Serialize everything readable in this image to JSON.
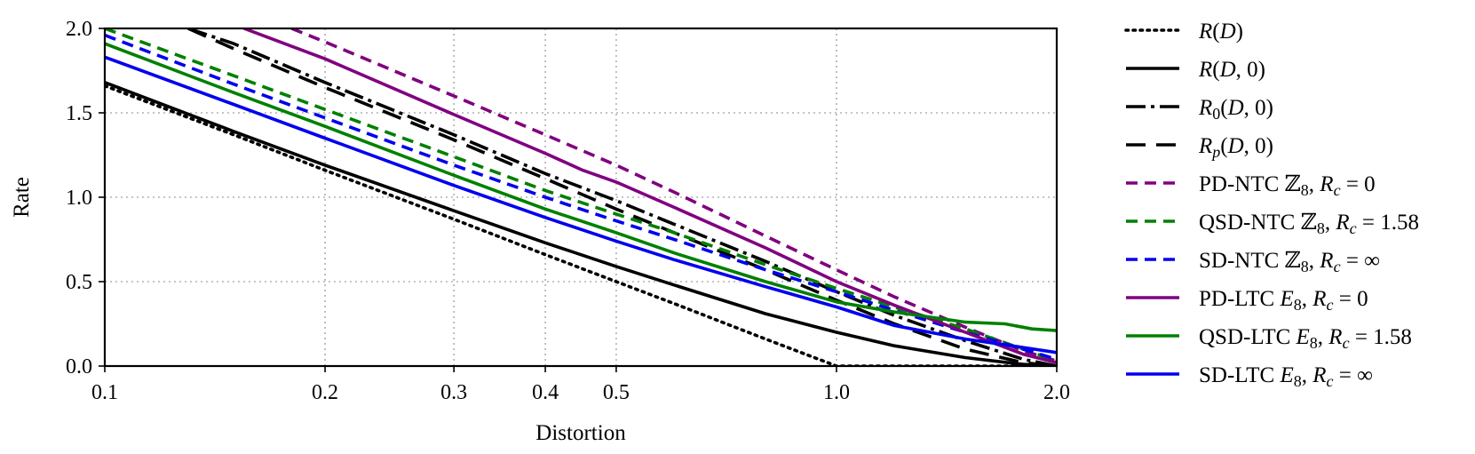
{
  "chart_data": {
    "type": "line",
    "title": "",
    "xlabel": "Distortion",
    "ylabel": "Rate",
    "xscale": "log",
    "xlim": [
      0.1,
      2.0
    ],
    "ylim": [
      0.0,
      2.0
    ],
    "grid": true,
    "legend_position": "right-outside",
    "xticks": [
      {
        "value": 0.1,
        "label": "0.1"
      },
      {
        "value": 0.2,
        "label": "0.2"
      },
      {
        "value": 0.3,
        "label": "0.3"
      },
      {
        "value": 0.4,
        "label": "0.4"
      },
      {
        "value": 0.5,
        "label": "0.5"
      },
      {
        "value": 1.0,
        "label": "1.0"
      },
      {
        "value": 2.0,
        "label": "2.0"
      }
    ],
    "yticks": [
      {
        "value": 0.0,
        "label": "0.0"
      },
      {
        "value": 0.5,
        "label": "0.5"
      },
      {
        "value": 1.0,
        "label": "1.0"
      },
      {
        "value": 1.5,
        "label": "1.5"
      },
      {
        "value": 2.0,
        "label": "2.0"
      }
    ],
    "series": [
      {
        "id": "r-d",
        "name": "R(D)",
        "color": "#000000",
        "dash": "dotted",
        "legend": [
          {
            "t": "R",
            "i": true
          },
          {
            "t": "(",
            "i": false
          },
          {
            "t": "D",
            "i": true
          },
          {
            "t": ")",
            "i": false
          }
        ],
        "x": [
          0.1,
          0.15,
          0.2,
          0.3,
          0.4,
          0.5,
          0.6,
          0.8,
          1.0,
          1.5,
          2.0
        ],
        "y": [
          1.66,
          1.37,
          1.16,
          0.87,
          0.66,
          0.5,
          0.37,
          0.16,
          0.0,
          0.0,
          0.0
        ]
      },
      {
        "id": "r-d-0",
        "name": "R(D,0)",
        "color": "#000000",
        "dash": "solid",
        "legend": [
          {
            "t": "R",
            "i": true
          },
          {
            "t": "(",
            "i": false
          },
          {
            "t": "D",
            "i": true
          },
          {
            "t": ", 0)",
            "i": false
          }
        ],
        "x": [
          0.1,
          0.15,
          0.2,
          0.3,
          0.4,
          0.5,
          0.6,
          0.8,
          1.0,
          1.2,
          1.5,
          1.8,
          2.0
        ],
        "y": [
          1.68,
          1.39,
          1.19,
          0.92,
          0.73,
          0.59,
          0.48,
          0.31,
          0.2,
          0.12,
          0.05,
          0.01,
          0.0
        ]
      },
      {
        "id": "r0-d-0",
        "name": "R0(D,0)",
        "color": "#000000",
        "dash": "dashdot",
        "legend": [
          {
            "t": "R",
            "i": true
          },
          {
            "t": "0",
            "i": false,
            "sub": true
          },
          {
            "t": "(",
            "i": false
          },
          {
            "t": "D",
            "i": true
          },
          {
            "t": ", 0)",
            "i": false
          }
        ],
        "x": [
          0.13,
          0.15,
          0.2,
          0.3,
          0.4,
          0.5,
          0.6,
          0.8,
          1.0,
          1.2,
          1.5,
          1.8,
          2.0
        ],
        "y": [
          2.0,
          1.91,
          1.68,
          1.37,
          1.14,
          0.98,
          0.84,
          0.62,
          0.44,
          0.3,
          0.15,
          0.04,
          0.0
        ]
      },
      {
        "id": "rp-d-0",
        "name": "Rp(D,0)",
        "color": "#000000",
        "dash": "longdash",
        "legend": [
          {
            "t": "R",
            "i": true
          },
          {
            "t": "p",
            "i": true,
            "sub": true
          },
          {
            "t": "(",
            "i": false
          },
          {
            "t": "D",
            "i": true
          },
          {
            "t": ", 0)",
            "i": false
          }
        ],
        "x": [
          0.13,
          0.15,
          0.2,
          0.3,
          0.4,
          0.5,
          0.6,
          0.8,
          1.0,
          1.2,
          1.5,
          1.8,
          2.0
        ],
        "y": [
          2.0,
          1.88,
          1.65,
          1.34,
          1.11,
          0.93,
          0.79,
          0.57,
          0.39,
          0.25,
          0.1,
          0.02,
          0.0
        ]
      },
      {
        "id": "pd-ntc",
        "name": "PD-NTC Z8, Rc = 0",
        "color": "#800080",
        "dash": "dashed",
        "legend": [
          {
            "t": "PD-NTC ",
            "i": false
          },
          {
            "t": "ℤ",
            "i": false
          },
          {
            "t": "8",
            "i": false,
            "sub": true
          },
          {
            "t": ", ",
            "i": false
          },
          {
            "t": "R",
            "i": true
          },
          {
            "t": "c",
            "i": true,
            "sub": true
          },
          {
            "t": " = 0",
            "i": false
          }
        ],
        "x": [
          0.18,
          0.2,
          0.3,
          0.4,
          0.5,
          0.6,
          0.8,
          1.0,
          1.2,
          1.5,
          1.8,
          2.0
        ],
        "y": [
          2.0,
          1.92,
          1.6,
          1.37,
          1.19,
          1.03,
          0.77,
          0.57,
          0.41,
          0.23,
          0.09,
          0.03
        ]
      },
      {
        "id": "qsd-ntc",
        "name": "QSD-NTC Z8, Rc = 1.58",
        "color": "#008000",
        "dash": "dashed",
        "legend": [
          {
            "t": "QSD-NTC ",
            "i": false
          },
          {
            "t": "ℤ",
            "i": false
          },
          {
            "t": "8",
            "i": false,
            "sub": true
          },
          {
            "t": ", ",
            "i": false
          },
          {
            "t": "R",
            "i": true
          },
          {
            "t": "c",
            "i": true,
            "sub": true
          },
          {
            "t": " = 1.58",
            "i": false
          }
        ],
        "x": [
          0.1,
          0.15,
          0.2,
          0.3,
          0.4,
          0.5,
          0.6,
          0.8,
          1.0,
          1.2,
          1.5,
          1.8,
          2.0
        ],
        "y": [
          2.0,
          1.72,
          1.52,
          1.24,
          1.04,
          0.9,
          0.79,
          0.6,
          0.46,
          0.35,
          0.22,
          0.1,
          0.03
        ]
      },
      {
        "id": "sd-ntc",
        "name": "SD-NTC Z8, Rc = ∞",
        "color": "#0000ee",
        "dash": "dashed",
        "legend": [
          {
            "t": "SD-NTC ",
            "i": false
          },
          {
            "t": "ℤ",
            "i": false
          },
          {
            "t": "8",
            "i": false,
            "sub": true
          },
          {
            "t": ", ",
            "i": false
          },
          {
            "t": "R",
            "i": true
          },
          {
            "t": "c",
            "i": true,
            "sub": true
          },
          {
            "t": " = ∞",
            "i": false
          }
        ],
        "x": [
          0.1,
          0.15,
          0.2,
          0.3,
          0.4,
          0.5,
          0.6,
          0.8,
          1.0,
          1.2,
          1.5,
          1.8,
          2.0
        ],
        "y": [
          1.96,
          1.67,
          1.47,
          1.19,
          1.0,
          0.86,
          0.75,
          0.57,
          0.44,
          0.33,
          0.2,
          0.1,
          0.04
        ]
      },
      {
        "id": "pd-ltc",
        "name": "PD-LTC E8, Rc = 0",
        "color": "#800080",
        "dash": "solid",
        "legend": [
          {
            "t": "PD-LTC ",
            "i": false
          },
          {
            "t": "E",
            "i": true
          },
          {
            "t": "8",
            "i": false,
            "sub": true
          },
          {
            "t": ", ",
            "i": false
          },
          {
            "t": "R",
            "i": true
          },
          {
            "t": "c",
            "i": true,
            "sub": true
          },
          {
            "t": " = 0",
            "i": false
          }
        ],
        "x": [
          0.155,
          0.2,
          0.3,
          0.4,
          0.45,
          0.5,
          0.6,
          0.8,
          1.0,
          1.2,
          1.5,
          1.8,
          2.0
        ],
        "y": [
          2.0,
          1.82,
          1.49,
          1.26,
          1.16,
          1.09,
          0.94,
          0.7,
          0.5,
          0.36,
          0.2,
          0.07,
          0.02
        ]
      },
      {
        "id": "qsd-ltc",
        "name": "QSD-LTC E8, Rc = 1.58",
        "color": "#008000",
        "dash": "solid",
        "legend": [
          {
            "t": "QSD-LTC ",
            "i": false
          },
          {
            "t": "E",
            "i": true
          },
          {
            "t": "8",
            "i": false,
            "sub": true
          },
          {
            "t": ", ",
            "i": false
          },
          {
            "t": "R",
            "i": true
          },
          {
            "t": "c",
            "i": true,
            "sub": true
          },
          {
            "t": " = 1.58",
            "i": false
          }
        ],
        "x": [
          0.1,
          0.15,
          0.2,
          0.3,
          0.4,
          0.5,
          0.6,
          0.8,
          1.0,
          1.2,
          1.5,
          1.7,
          1.85,
          2.0
        ],
        "y": [
          1.91,
          1.62,
          1.42,
          1.13,
          0.93,
          0.79,
          0.67,
          0.5,
          0.38,
          0.32,
          0.26,
          0.25,
          0.22,
          0.21
        ]
      },
      {
        "id": "sd-ltc",
        "name": "SD-LTC E8, Rc = ∞",
        "color": "#0000ee",
        "dash": "solid",
        "legend": [
          {
            "t": "SD-LTC ",
            "i": false
          },
          {
            "t": "E",
            "i": true
          },
          {
            "t": "8",
            "i": false,
            "sub": true
          },
          {
            "t": ", ",
            "i": false
          },
          {
            "t": "R",
            "i": true
          },
          {
            "t": "c",
            "i": true,
            "sub": true
          },
          {
            "t": " = ∞",
            "i": false
          }
        ],
        "x": [
          0.1,
          0.15,
          0.2,
          0.3,
          0.4,
          0.5,
          0.6,
          0.8,
          1.0,
          1.2,
          1.5,
          1.8,
          2.0
        ],
        "y": [
          1.83,
          1.55,
          1.35,
          1.07,
          0.88,
          0.74,
          0.63,
          0.47,
          0.35,
          0.24,
          0.16,
          0.11,
          0.08
        ]
      }
    ]
  }
}
